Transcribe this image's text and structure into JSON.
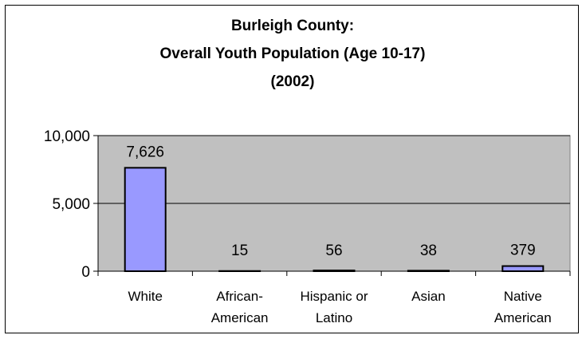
{
  "chart_data": {
    "type": "bar",
    "title_lines": [
      "Burleigh County:",
      "Overall Youth Population (Age 10-17)",
      "(2002)"
    ],
    "categories": [
      [
        "White"
      ],
      [
        "African-",
        "American"
      ],
      [
        "Hispanic or",
        "Latino"
      ],
      [
        "Asian"
      ],
      [
        "Native",
        "American"
      ]
    ],
    "values": [
      7626,
      15,
      56,
      38,
      379
    ],
    "data_labels": [
      "7,626",
      "15",
      "56",
      "38",
      "379"
    ],
    "yticks": [
      0,
      5000,
      10000
    ],
    "ytick_labels": [
      "0",
      "5,000",
      "10,000"
    ],
    "ylim": [
      0,
      10000
    ],
    "xlabel": "",
    "ylabel": "",
    "grid": true,
    "colors": {
      "plot_bg": "#c0c0c0",
      "bar_fill": "#9999ff",
      "bar_stroke": "#000000",
      "gridline": "#000000"
    }
  }
}
